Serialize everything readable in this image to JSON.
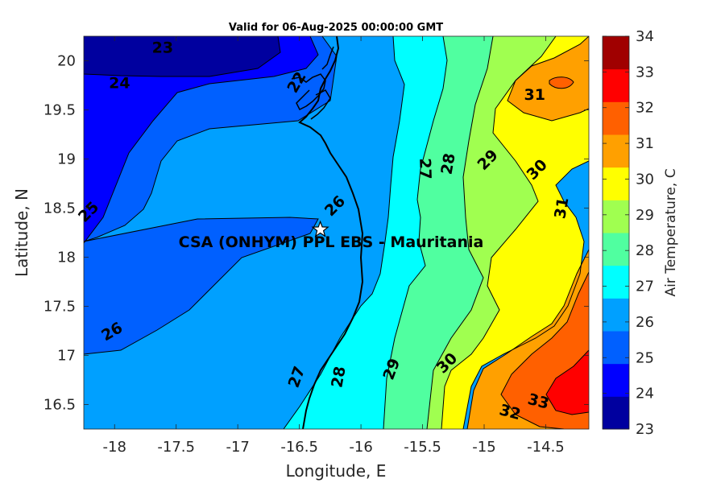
{
  "title": "Valid for 06-Aug-2025 00:00:00 GMT",
  "xlabel": "Longitude, E",
  "ylabel": "Latitude, N",
  "colorbar_label": "Air Temperature, C",
  "site_label": "CSA (ONHYM) PPL EBS  - Mauritania",
  "site_marker": "star-icon",
  "x_ticks": [
    "-18",
    "-17.5",
    "-17",
    "-16.5",
    "-16",
    "-15.5",
    "-15",
    "-14.5"
  ],
  "y_ticks": [
    "16.5",
    "17",
    "17.5",
    "18",
    "18.5",
    "19",
    "19.5",
    "20"
  ],
  "cb_ticks": [
    "23",
    "24",
    "25",
    "26",
    "27",
    "28",
    "29",
    "30",
    "31",
    "32",
    "33",
    "34"
  ],
  "map_data": {
    "type": "contour",
    "variable": "Air Temperature, C",
    "xlim": [
      -18.25,
      -14.15
    ],
    "ylim": [
      16.25,
      20.25
    ],
    "site": {
      "lon": -16.33,
      "lat": 18.28
    },
    "levels": [
      23,
      24,
      25,
      26,
      27,
      28,
      29,
      30,
      31,
      32,
      33,
      34
    ],
    "colors": [
      "#00009f",
      "#0000ff",
      "#0060ff",
      "#00a0ff",
      "#00ffff",
      "#50ffa0",
      "#a0ff50",
      "#ffff00",
      "#ffa000",
      "#ff6000",
      "#ff0000",
      "#a00000"
    ],
    "contour_labels": [
      {
        "text": "23",
        "lon": -17.61,
        "lat": 20.13,
        "rot": 0
      },
      {
        "text": "24",
        "lon": -17.96,
        "lat": 19.77,
        "rot": 0
      },
      {
        "text": "25",
        "lon": -18.21,
        "lat": 18.46,
        "rot": -45
      },
      {
        "text": "26",
        "lon": -18.02,
        "lat": 17.24,
        "rot": -30
      },
      {
        "text": "26",
        "lon": -16.21,
        "lat": 18.52,
        "rot": -45
      },
      {
        "text": "27",
        "lon": -15.48,
        "lat": 18.9,
        "rot": 88
      },
      {
        "text": "27",
        "lon": -16.52,
        "lat": 16.78,
        "rot": -70
      },
      {
        "text": "28",
        "lon": -15.29,
        "lat": 18.95,
        "rot": -80
      },
      {
        "text": "28",
        "lon": -16.18,
        "lat": 16.78,
        "rot": -80
      },
      {
        "text": "29",
        "lon": -14.97,
        "lat": 18.99,
        "rot": -45
      },
      {
        "text": "29",
        "lon": -15.75,
        "lat": 16.86,
        "rot": -70
      },
      {
        "text": "30",
        "lon": -14.57,
        "lat": 18.89,
        "rot": -45
      },
      {
        "text": "30",
        "lon": -15.3,
        "lat": 16.92,
        "rot": -45
      },
      {
        "text": "31",
        "lon": -14.59,
        "lat": 19.65,
        "rot": 0
      },
      {
        "text": "31",
        "lon": -14.37,
        "lat": 18.5,
        "rot": -80
      },
      {
        "text": "32",
        "lon": -14.79,
        "lat": 16.42,
        "rot": 15
      },
      {
        "text": "33",
        "lon": -14.56,
        "lat": 16.53,
        "rot": 15
      },
      {
        "text": "22",
        "lon": -16.52,
        "lat": 19.78,
        "rot": -60
      }
    ]
  }
}
